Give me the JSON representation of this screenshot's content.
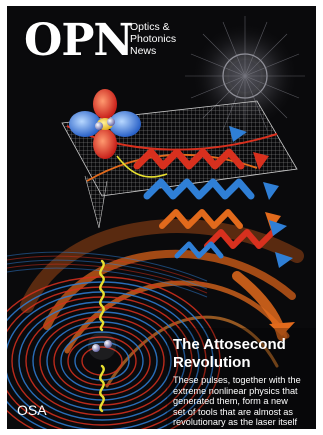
{
  "magazine": {
    "logo": "OPN",
    "subtitle": [
      "Optics &",
      "Photonics",
      "News"
    ]
  },
  "feature": {
    "headline": [
      "The Attosecond",
      "Revolution"
    ],
    "deck": [
      "These pulses, together with the",
      "extreme nonlinear physics that",
      "generated them, form a new",
      "set of tools that are almost as",
      "revolutionary as the laser itself"
    ]
  },
  "publisher": "OSA",
  "colors": {
    "background": "#0a0a0c",
    "arc_orange": "#e26a1c",
    "wave_red": "#d8301e",
    "wave_blue": "#2f7fd6",
    "pulse_yellow": "#e8e030",
    "grid_gray": "#9a9a9a"
  }
}
